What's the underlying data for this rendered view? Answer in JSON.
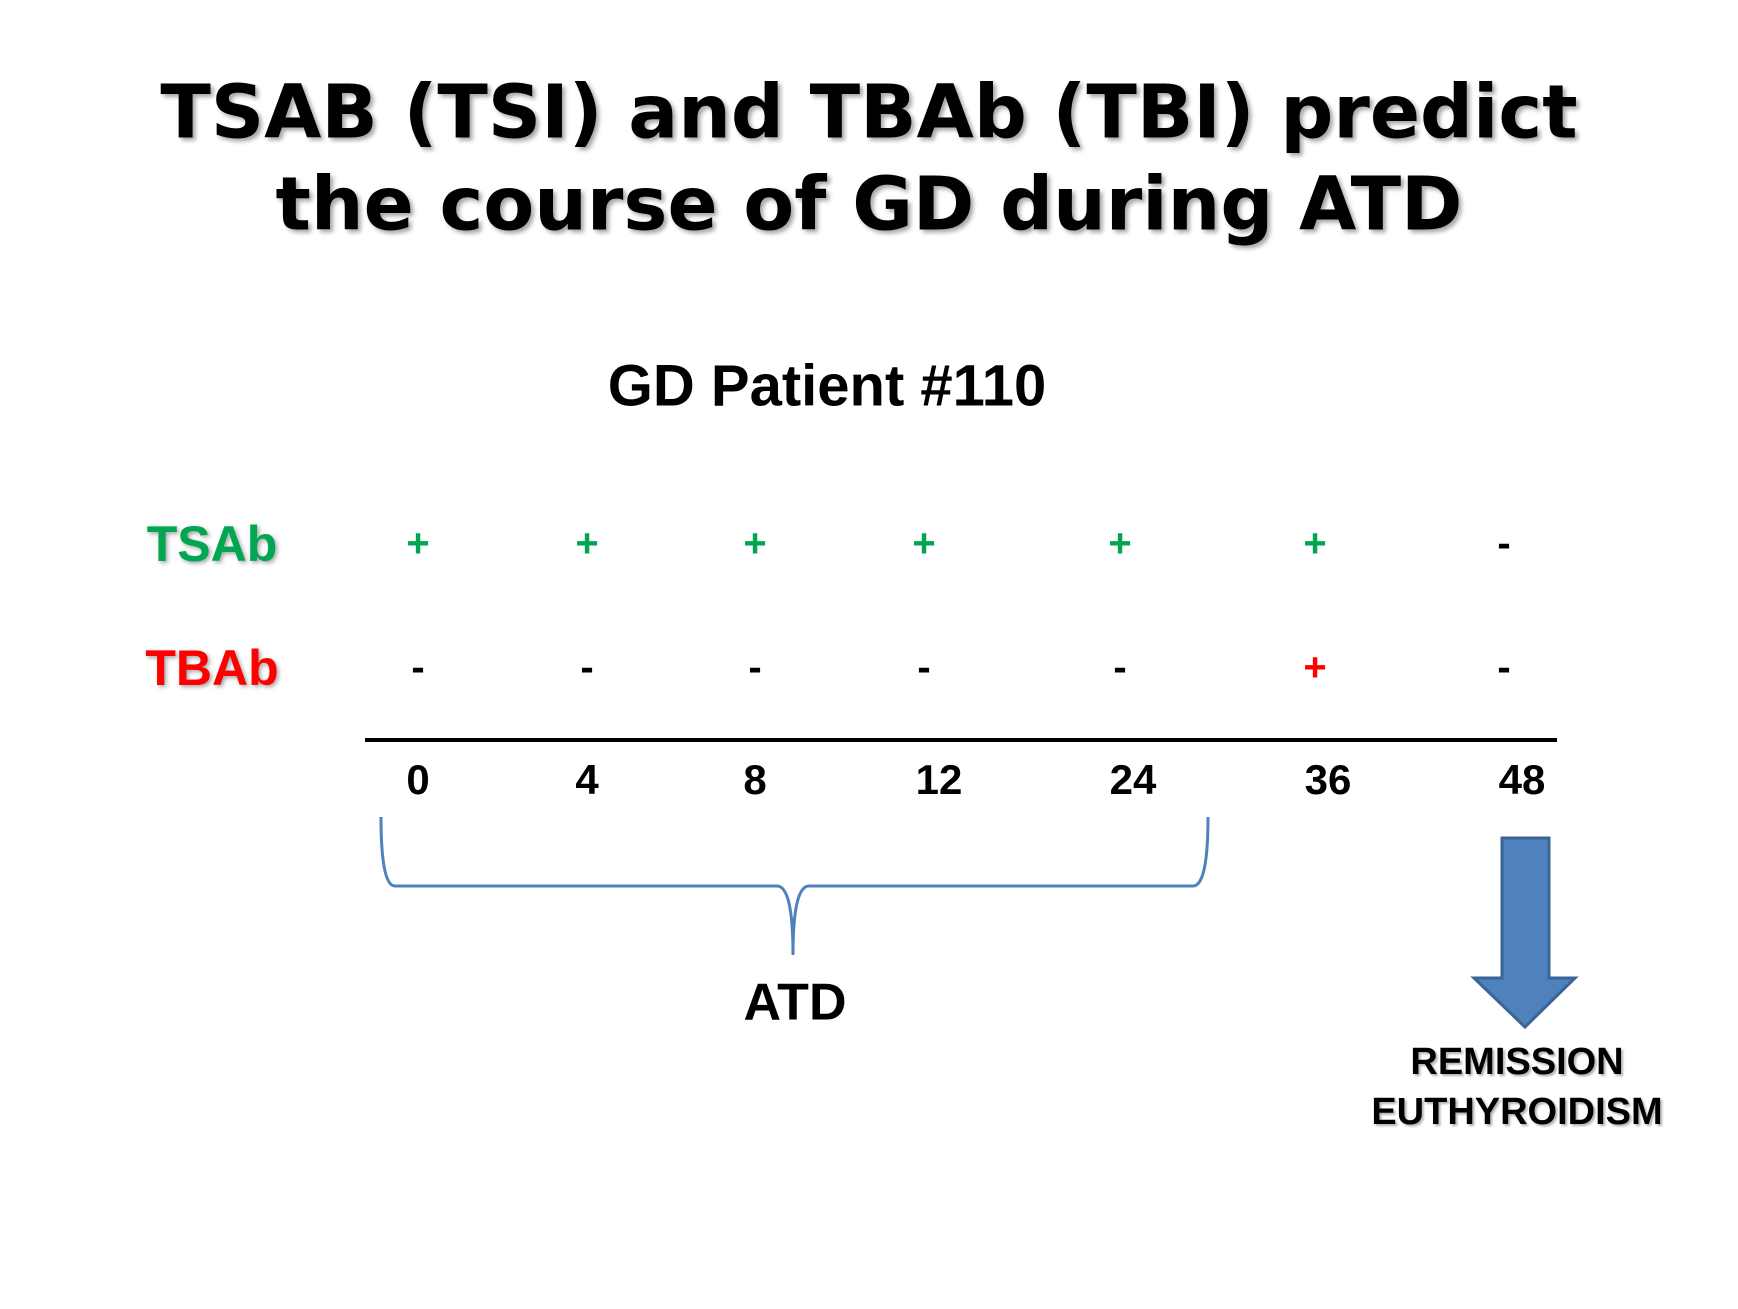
{
  "header": {
    "title_lines": [
      "TSAB (TSI) and TBAb (TBI) predict",
      "the course of GD during ATD"
    ]
  },
  "subtitle": "GD Patient #110",
  "rows": [
    {
      "label": "TSAb",
      "color": "#00a650",
      "cells": [
        {
          "text": "+",
          "color": "#00a650"
        },
        {
          "text": "+",
          "color": "#00a650"
        },
        {
          "text": "+",
          "color": "#00a650"
        },
        {
          "text": "+",
          "color": "#00a650"
        },
        {
          "text": "+",
          "color": "#00a650"
        },
        {
          "text": "+",
          "color": "#00a650"
        },
        {
          "text": "-",
          "color": "#000000"
        }
      ]
    },
    {
      "label": "TBAb",
      "color": "#ff0000",
      "cells": [
        {
          "text": "-",
          "color": "#000000"
        },
        {
          "text": "-",
          "color": "#000000"
        },
        {
          "text": "-",
          "color": "#000000"
        },
        {
          "text": "-",
          "color": "#000000"
        },
        {
          "text": "-",
          "color": "#000000"
        },
        {
          "text": "+",
          "color": "#ff0000"
        },
        {
          "text": "-",
          "color": "#000000"
        }
      ]
    }
  ],
  "timepoints": [
    "0",
    "4",
    "8",
    "12",
    "24",
    "36",
    "48"
  ],
  "brace_label": "ATD",
  "outcome_lines": [
    "REMISSION",
    "EUTHYROIDISM"
  ]
}
